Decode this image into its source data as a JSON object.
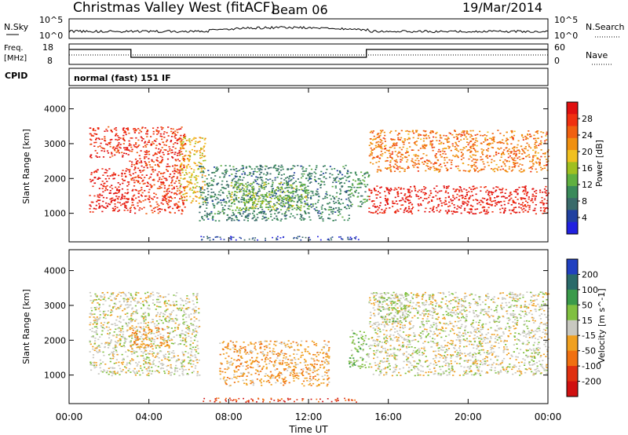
{
  "header": {
    "station": "Christmas Valley West (fitACF)",
    "beam": "Beam 06",
    "date": "19/Mar/2014"
  },
  "top_panel": {
    "left_label": "N.Sky",
    "left_ticks": [
      "10^5",
      "10^0"
    ],
    "right_ticks": [
      "10^5",
      "10^0"
    ],
    "right_label": "N.Search"
  },
  "freq_panel": {
    "left_label_1": "Freq.",
    "left_label_2": "[MHz]",
    "left_ticks": [
      "18",
      "8"
    ],
    "right_ticks": [
      "60",
      "0"
    ],
    "right_label": "Nave",
    "cpid_label": "CPID",
    "mode_text": "normal (fast) 151 IF"
  },
  "power_panel": {
    "ylabel": "Slant Range [km]",
    "yticks": [
      "4000",
      "3000",
      "2000",
      "1000"
    ],
    "colorbar_label": "Power [dB]",
    "colorbar_ticks": [
      "28",
      "24",
      "20",
      "16",
      "12",
      "8",
      "4"
    ],
    "colors": [
      "#2020e0",
      "#2040a0",
      "#3a6a6a",
      "#3a8a5a",
      "#60b040",
      "#a0c020",
      "#f0c020",
      "#f09010",
      "#f06010",
      "#f03010",
      "#e01010"
    ]
  },
  "velocity_panel": {
    "ylabel": "Slant Range [km]",
    "yticks": [
      "4000",
      "3000",
      "2000",
      "1000"
    ],
    "colorbar_label": "Velocity [m s^-1]",
    "colorbar_ticks": [
      "200",
      "100",
      "50",
      "15",
      "-15",
      "-50",
      "-100",
      "-200"
    ],
    "colors": [
      "#2040c0",
      "#2a6a6a",
      "#3a9a4a",
      "#80c040",
      "#c8c8c0",
      "#f0a020",
      "#f07010",
      "#e03010",
      "#d01010"
    ]
  },
  "x_axis": {
    "ticks": [
      "00:00",
      "04:00",
      "08:00",
      "12:00",
      "16:00",
      "20:00",
      "00:00"
    ],
    "label": "Time UT"
  },
  "chart_data": [
    {
      "type": "heatmap",
      "name": "power",
      "title": "Christmas Valley West (fitACF) Beam 06 19/Mar/2014",
      "xlabel": "Time UT",
      "ylabel": "Slant Range [km]",
      "x_range_hours": [
        0,
        24
      ],
      "ylim": [
        180,
        4600
      ],
      "colorbar": "Power [dB]",
      "color_range": [
        0,
        30
      ],
      "regions": [
        {
          "t": [
            1.0,
            3.0
          ],
          "range": [
            1050,
            2300
          ],
          "value": 28
        },
        {
          "t": [
            1.0,
            3.0
          ],
          "range": [
            2600,
            3500
          ],
          "value": 27
        },
        {
          "t": [
            3.0,
            5.8
          ],
          "range": [
            1000,
            3500
          ],
          "value": 26
        },
        {
          "t": [
            5.5,
            6.8
          ],
          "range": [
            1300,
            3200
          ],
          "value": 18
        },
        {
          "t": [
            6.5,
            14.0
          ],
          "range": [
            800,
            2400
          ],
          "value": 8
        },
        {
          "t": [
            8.0,
            12.0
          ],
          "range": [
            1100,
            1900
          ],
          "value": 14
        },
        {
          "t": [
            14.0,
            15.0
          ],
          "range": [
            1200,
            2200
          ],
          "value": 10
        },
        {
          "t": [
            15.0,
            24.0
          ],
          "range": [
            1000,
            1800
          ],
          "value": 28
        },
        {
          "t": [
            15.0,
            24.0
          ],
          "range": [
            2200,
            3400
          ],
          "value": 22
        }
      ]
    },
    {
      "type": "heatmap",
      "name": "velocity",
      "xlabel": "Time UT",
      "ylabel": "Slant Range [km]",
      "x_range_hours": [
        0,
        24
      ],
      "ylim": [
        180,
        4600
      ],
      "colorbar": "Velocity [m s^-1]",
      "color_range": [
        -200,
        200
      ],
      "regions": [
        {
          "t": [
            1.0,
            6.5
          ],
          "range": [
            1000,
            3400
          ],
          "value": 0
        },
        {
          "t": [
            3.0,
            5.0
          ],
          "range": [
            1800,
            2400
          ],
          "value": -60
        },
        {
          "t": [
            7.5,
            13.0
          ],
          "range": [
            700,
            2000
          ],
          "value": -50
        },
        {
          "t": [
            14.0,
            15.0
          ],
          "range": [
            1200,
            2300
          ],
          "value": 40
        },
        {
          "t": [
            15.0,
            24.0
          ],
          "range": [
            1000,
            3400
          ],
          "value": 0
        },
        {
          "t": [
            15.5,
            17.0
          ],
          "range": [
            2500,
            3400
          ],
          "value": 30
        }
      ]
    }
  ]
}
